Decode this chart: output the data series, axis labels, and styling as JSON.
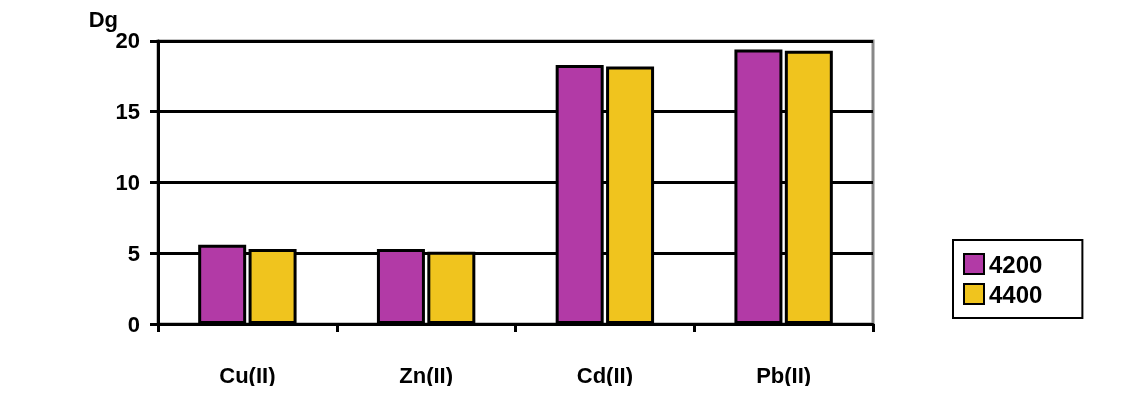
{
  "chart_data": {
    "type": "bar",
    "ylabel": "Dg",
    "categories": [
      "Cu(II)",
      "Zn(II)",
      "Cd(II)",
      "Pb(II)"
    ],
    "series": [
      {
        "name": "4200",
        "color": "#b23aa6",
        "values": [
          5.6,
          5.3,
          18.3,
          19.4
        ]
      },
      {
        "name": "4400",
        "color": "#f0c41e",
        "values": [
          5.3,
          5.1,
          18.2,
          19.3
        ]
      }
    ],
    "ylim": [
      0,
      20
    ],
    "yticks": [
      0,
      5,
      10,
      15,
      20
    ],
    "grid": "y",
    "legend": "right"
  }
}
